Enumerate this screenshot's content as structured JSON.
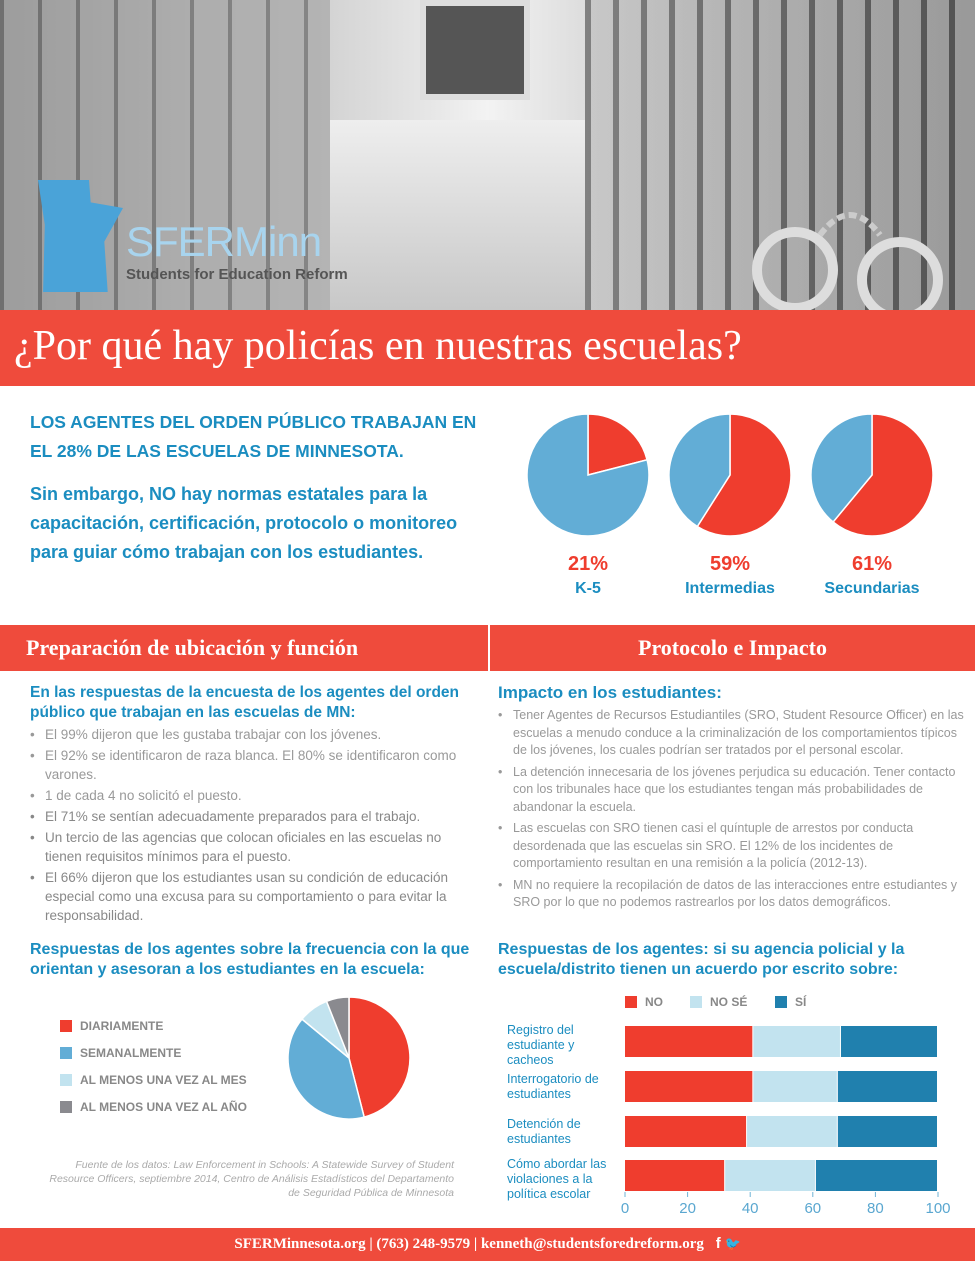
{
  "brand": {
    "logo_name": "SFERMinn",
    "logo_tagline": "Students for Education Reform"
  },
  "title": "¿Por qué hay policías en nuestras escuelas?",
  "intro": {
    "line1": "LOS AGENTES DEL ORDEN PÚBLICO TRABAJAN EN EL 28% DE LAS ESCUELAS DE MINNESOTA.",
    "line2": "Sin embargo, NO hay normas estatales para la capacitación, certificación, protocolo o monitoreo para guiar cómo trabajan con los estudiantes."
  },
  "sections": {
    "left_title": "Preparación de ubicación y función",
    "right_title": "Protocolo e Impacto"
  },
  "survey": {
    "heading": "En las respuestas de la encuesta de los agentes del orden público que trabajan en las escuelas de MN:",
    "items": [
      "El 99% dijeron que les gustaba trabajar con los jóvenes.",
      "El 92% se identificaron de raza blanca. El 80% se identificaron como varones.",
      "1 de cada 4 no solicitó el puesto.",
      "El 71% se sentían adecuadamente preparados para el trabajo.",
      "Un tercio de las agencias que colocan oficiales en las escuelas no tienen requisitos mínimos para el puesto.",
      "El 66% dijeron que los estudiantes usan su condición de educación especial como una excusa para su comportamiento o para evitar la responsabilidad."
    ]
  },
  "impact": {
    "heading": "Impacto en los estudiantes:",
    "items": [
      "Tener Agentes de Recursos Estudiantiles (SRO, Student Resource Officer) en las escuelas a menudo conduce a la criminalización de los comportamientos típicos de los jóvenes, los cuales podrían ser tratados por el personal escolar.",
      "La detención innecesaria de los jóvenes perjudica su educación. Tener contacto con los tribunales hace que los estudiantes tengan más probabilidades de abandonar la escuela.",
      "Las escuelas con SRO tienen casi el quíntuple de arrestos por conducta desordenada que las escuelas sin SRO. El 12% de los incidentes de comportamiento resultan en una remisión a la policía (2012-13).",
      "MN no requiere la recopilación de datos de las interacciones entre estudiantes y SRO por lo que no podemos rastrearlos por los datos demográficos."
    ]
  },
  "source": "Fuente de los datos: Law Enforcement in Schools: A Statewide Survey of Student Resource Officers, septiembre 2014, Centro de Análisis Estadísticos del Departamento de Seguridad Pública de Minnesota",
  "footer": "SFERMinnesota.org | (763) 248-9579 | kenneth@studentsforedreform.org",
  "colors": {
    "red": "#ef3d2e",
    "blue": "#62add6",
    "light": "#c2e3ef",
    "gray": "#8a8a8f",
    "dark_blue": "#2080ae",
    "accent": "#1b8dc0"
  },
  "chart_data": [
    {
      "type": "pie",
      "categories": [
        "K-5",
        "Intermedias",
        "Secundarias"
      ],
      "values": [
        21,
        59,
        61
      ],
      "labels": [
        "21%",
        "59%",
        "61%"
      ]
    },
    {
      "type": "pie",
      "title": "Respuestas de los agentes sobre la frecuencia con la que orientan y asesoran a los estudiantes en la escuela:",
      "categories": [
        "DIARIAMENTE",
        "SEMANALMENTE",
        "AL MENOS UNA VEZ AL MES",
        "AL MENOS UNA VEZ AL AÑO"
      ],
      "values": [
        46,
        40,
        8,
        6
      ]
    },
    {
      "type": "bar",
      "orientation": "horizontal",
      "stacked": true,
      "title": "Respuestas de los agentes: si su agencia policial y la escuela/distrito tienen un acuerdo por escrito sobre:",
      "categories": [
        "Registro del estudiante y cacheos",
        "Interrogatorio de estudiantes",
        "Detención de estudiantes",
        "Cómo abordar las violaciones a la política escolar"
      ],
      "series": [
        {
          "name": "NO",
          "values": [
            41,
            41,
            39,
            32
          ]
        },
        {
          "name": "NO SÉ",
          "values": [
            28,
            27,
            29,
            29
          ]
        },
        {
          "name": "SÍ",
          "values": [
            31,
            32,
            32,
            39
          ]
        }
      ],
      "xlim": [
        0,
        100
      ],
      "xticks": [
        "0",
        "20",
        "40",
        "60",
        "80",
        "100"
      ],
      "legend": "top"
    }
  ]
}
